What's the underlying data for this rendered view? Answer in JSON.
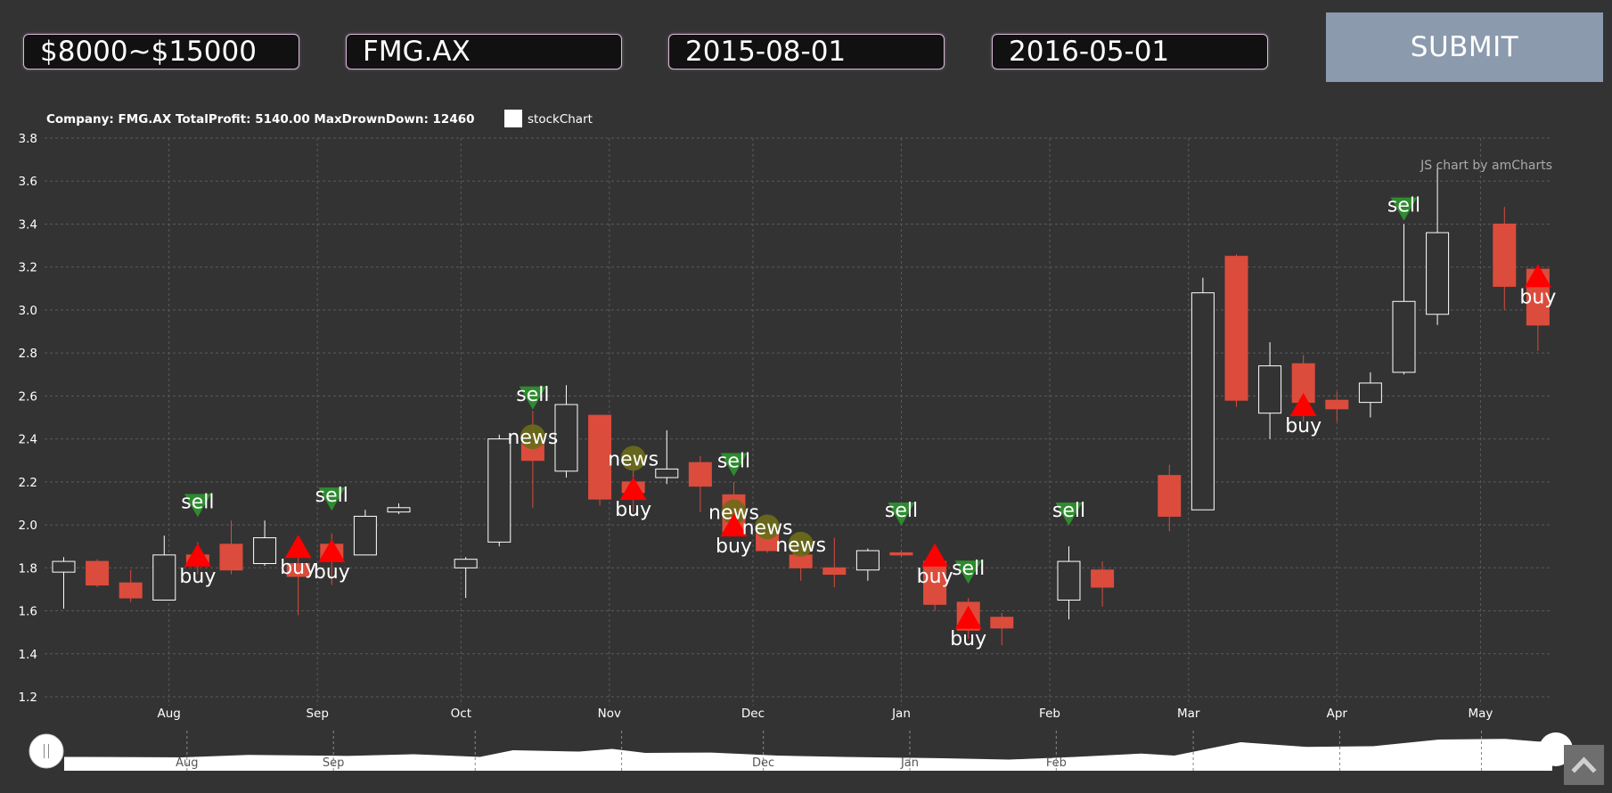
{
  "form": {
    "budget": "$8000~$15000",
    "ticker": "FMG.AX",
    "start_date": "2015-08-01",
    "end_date": "2016-05-01",
    "submit_label": "SUBMIT"
  },
  "chart": {
    "title": "Company: FMG.AX TotalProfit: 5140.00 MaxDrownDown: 12460",
    "legend_label": "stockChart",
    "credit": "JS chart by amCharts"
  },
  "colors": {
    "background": "#333333",
    "up_fill": "#333333",
    "up_stroke": "#ffffff",
    "down_fill": "#db4c3c",
    "buy_marker": "#ff0000",
    "sell_marker": "#2e8b2e",
    "news_marker": "#6b6b1a",
    "grid": "#5a5a5a",
    "scrollbar_fill": "#ffffff"
  },
  "icons": {
    "scroll_top": "chevron-up-icon",
    "scrollbar_handle": "grip-handle-icon"
  },
  "chart_data": {
    "type": "candlestick",
    "ylim": [
      1.2,
      3.8
    ],
    "yticks": [
      1.2,
      1.4,
      1.6,
      1.8,
      2.0,
      2.2,
      2.4,
      2.6,
      2.8,
      3.0,
      3.2,
      3.4,
      3.6,
      3.8
    ],
    "grid": true,
    "xlim": [
      "2015-07-06",
      "2016-05-16"
    ],
    "xticks": [
      {
        "date": "2015-08-01",
        "label": "Aug"
      },
      {
        "date": "2015-09-01",
        "label": "Sep"
      },
      {
        "date": "2015-10-01",
        "label": "Oct"
      },
      {
        "date": "2015-11-01",
        "label": "Nov"
      },
      {
        "date": "2015-12-01",
        "label": "Dec"
      },
      {
        "date": "2016-01-01",
        "label": "Jan"
      },
      {
        "date": "2016-02-01",
        "label": "Feb"
      },
      {
        "date": "2016-03-01",
        "label": "Mar"
      },
      {
        "date": "2016-04-01",
        "label": "Apr"
      },
      {
        "date": "2016-05-01",
        "label": "May"
      }
    ],
    "scrollbar_labels": [
      {
        "date": "2015-08-01",
        "label": "Aug"
      },
      {
        "date": "2015-09-01",
        "label": "Sep"
      },
      {
        "date": "2015-12-01",
        "label": "Dec"
      },
      {
        "date": "2016-01-01",
        "label": "Jan"
      },
      {
        "date": "2016-02-01",
        "label": "Feb"
      }
    ],
    "candles": [
      {
        "date": "2015-07-10",
        "open": 1.78,
        "high": 1.85,
        "low": 1.61,
        "close": 1.83
      },
      {
        "date": "2015-07-17",
        "open": 1.83,
        "high": 1.84,
        "low": 1.71,
        "close": 1.72
      },
      {
        "date": "2015-07-24",
        "open": 1.73,
        "high": 1.79,
        "low": 1.64,
        "close": 1.66
      },
      {
        "date": "2015-07-31",
        "open": 1.65,
        "high": 1.95,
        "low": 1.65,
        "close": 1.86
      },
      {
        "date": "2015-08-07",
        "open": 1.86,
        "high": 1.92,
        "low": 1.77,
        "close": 1.82
      },
      {
        "date": "2015-08-14",
        "open": 1.91,
        "high": 2.02,
        "low": 1.77,
        "close": 1.79
      },
      {
        "date": "2015-08-21",
        "open": 1.82,
        "high": 2.02,
        "low": 1.81,
        "close": 1.94
      },
      {
        "date": "2015-08-28",
        "open": 1.82,
        "high": 1.85,
        "low": 1.58,
        "close": 1.76
      },
      {
        "date": "2015-09-04",
        "open": 1.91,
        "high": 1.96,
        "low": 1.72,
        "close": 1.83
      },
      {
        "date": "2015-09-11",
        "open": 1.86,
        "high": 2.07,
        "low": 1.86,
        "close": 2.04
      },
      {
        "date": "2015-09-18",
        "open": 2.06,
        "high": 2.1,
        "low": 2.05,
        "close": 2.08
      },
      {
        "date": "2015-10-02",
        "open": 1.8,
        "high": 1.85,
        "low": 1.66,
        "close": 1.84
      },
      {
        "date": "2015-10-09",
        "open": 1.92,
        "high": 2.42,
        "low": 1.9,
        "close": 2.4
      },
      {
        "date": "2015-10-16",
        "open": 2.38,
        "high": 2.53,
        "low": 2.08,
        "close": 2.3
      },
      {
        "date": "2015-10-23",
        "open": 2.25,
        "high": 2.65,
        "low": 2.22,
        "close": 2.56
      },
      {
        "date": "2015-10-30",
        "open": 2.51,
        "high": 2.51,
        "low": 2.09,
        "close": 2.12
      },
      {
        "date": "2015-11-06",
        "open": 2.2,
        "high": 2.3,
        "low": 2.06,
        "close": 2.15
      },
      {
        "date": "2015-11-13",
        "open": 2.22,
        "high": 2.44,
        "low": 2.19,
        "close": 2.26
      },
      {
        "date": "2015-11-20",
        "open": 2.29,
        "high": 2.32,
        "low": 2.06,
        "close": 2.18
      },
      {
        "date": "2015-11-27",
        "open": 2.14,
        "high": 2.2,
        "low": 1.95,
        "close": 1.96
      },
      {
        "date": "2015-12-04",
        "open": 1.96,
        "high": 1.99,
        "low": 1.87,
        "close": 1.88
      },
      {
        "date": "2015-12-11",
        "open": 1.86,
        "high": 1.89,
        "low": 1.74,
        "close": 1.8
      },
      {
        "date": "2015-12-18",
        "open": 1.8,
        "high": 1.94,
        "low": 1.71,
        "close": 1.77
      },
      {
        "date": "2015-12-25",
        "open": 1.79,
        "high": 1.89,
        "low": 1.74,
        "close": 1.88
      },
      {
        "date": "2016-01-01",
        "open": 1.87,
        "high": 1.88,
        "low": 1.85,
        "close": 1.86
      },
      {
        "date": "2016-01-08",
        "open": 1.83,
        "high": 1.85,
        "low": 1.6,
        "close": 1.63
      },
      {
        "date": "2016-01-15",
        "open": 1.64,
        "high": 1.66,
        "low": 1.47,
        "close": 1.51
      },
      {
        "date": "2016-01-22",
        "open": 1.57,
        "high": 1.59,
        "low": 1.44,
        "close": 1.52
      },
      {
        "date": "2016-02-05",
        "open": 1.65,
        "high": 1.9,
        "low": 1.56,
        "close": 1.83
      },
      {
        "date": "2016-02-12",
        "open": 1.79,
        "high": 1.83,
        "low": 1.62,
        "close": 1.71
      },
      {
        "date": "2016-02-26",
        "open": 2.23,
        "high": 2.28,
        "low": 1.97,
        "close": 2.04
      },
      {
        "date": "2016-03-04",
        "open": 2.07,
        "high": 3.15,
        "low": 2.07,
        "close": 3.08
      },
      {
        "date": "2016-03-11",
        "open": 3.25,
        "high": 3.26,
        "low": 2.55,
        "close": 2.58
      },
      {
        "date": "2016-03-18",
        "open": 2.52,
        "high": 2.85,
        "low": 2.4,
        "close": 2.74
      },
      {
        "date": "2016-03-25",
        "open": 2.75,
        "high": 2.79,
        "low": 2.48,
        "close": 2.57
      },
      {
        "date": "2016-04-01",
        "open": 2.58,
        "high": 2.62,
        "low": 2.48,
        "close": 2.54
      },
      {
        "date": "2016-04-08",
        "open": 2.57,
        "high": 2.71,
        "low": 2.5,
        "close": 2.66
      },
      {
        "date": "2016-04-15",
        "open": 2.71,
        "high": 3.4,
        "low": 2.7,
        "close": 3.04
      },
      {
        "date": "2016-04-22",
        "open": 2.98,
        "high": 3.66,
        "low": 2.93,
        "close": 3.36
      },
      {
        "date": "2016-05-06",
        "open": 3.4,
        "high": 3.48,
        "low": 3.0,
        "close": 3.11
      },
      {
        "date": "2016-05-13",
        "open": 3.19,
        "high": 3.2,
        "low": 2.81,
        "close": 2.93
      }
    ],
    "events": [
      {
        "type": "sell",
        "label": "sell",
        "date": "2015-08-07",
        "value": 2.09
      },
      {
        "type": "buy",
        "label": "buy",
        "date": "2015-08-07",
        "value": 1.86
      },
      {
        "type": "buy",
        "label": "buy",
        "date": "2015-08-28",
        "value": 1.9
      },
      {
        "type": "sell",
        "label": "sell",
        "date": "2015-09-04",
        "value": 2.12
      },
      {
        "type": "buy",
        "label": "buy",
        "date": "2015-09-04",
        "value": 1.88
      },
      {
        "type": "sell",
        "label": "sell",
        "date": "2015-10-16",
        "value": 2.59
      },
      {
        "type": "news",
        "label": "news",
        "date": "2015-10-16",
        "value": 2.41
      },
      {
        "type": "news",
        "label": "news",
        "date": "2015-11-06",
        "value": 2.31
      },
      {
        "type": "buy",
        "label": "buy",
        "date": "2015-11-06",
        "value": 2.17
      },
      {
        "type": "sell",
        "label": "sell",
        "date": "2015-11-27",
        "value": 2.28
      },
      {
        "type": "news",
        "label": "news",
        "date": "2015-11-27",
        "value": 2.06
      },
      {
        "type": "buy",
        "label": "buy",
        "date": "2015-11-27",
        "value": 2.0
      },
      {
        "type": "news",
        "label": "news",
        "date": "2015-12-04",
        "value": 1.99
      },
      {
        "type": "news",
        "label": "news",
        "date": "2015-12-11",
        "value": 1.91
      },
      {
        "type": "sell",
        "label": "sell",
        "date": "2016-01-01",
        "value": 2.05
      },
      {
        "type": "buy",
        "label": "buy",
        "date": "2016-01-08",
        "value": 1.86
      },
      {
        "type": "sell",
        "label": "sell",
        "date": "2016-01-15",
        "value": 1.78
      },
      {
        "type": "buy",
        "label": "buy",
        "date": "2016-01-15",
        "value": 1.57
      },
      {
        "type": "sell",
        "label": "sell",
        "date": "2016-02-05",
        "value": 2.05
      },
      {
        "type": "buy",
        "label": "buy",
        "date": "2016-03-25",
        "value": 2.56
      },
      {
        "type": "sell",
        "label": "sell",
        "date": "2016-04-15",
        "value": 3.47
      },
      {
        "type": "buy",
        "label": "buy",
        "date": "2016-05-13",
        "value": 3.16
      }
    ],
    "scrollbar_area": [
      {
        "date": "2015-07-10",
        "value": 1.0
      },
      {
        "date": "2015-07-31",
        "value": 0.93
      },
      {
        "date": "2015-08-14",
        "value": 1.3
      },
      {
        "date": "2015-09-04",
        "value": 1.15
      },
      {
        "date": "2015-09-18",
        "value": 1.4
      },
      {
        "date": "2015-10-02",
        "value": 1.0
      },
      {
        "date": "2015-10-09",
        "value": 2.0
      },
      {
        "date": "2015-10-23",
        "value": 1.8
      },
      {
        "date": "2015-10-30",
        "value": 2.2
      },
      {
        "date": "2015-11-06",
        "value": 1.6
      },
      {
        "date": "2015-11-20",
        "value": 1.65
      },
      {
        "date": "2015-12-04",
        "value": 1.2
      },
      {
        "date": "2015-12-18",
        "value": 1.0
      },
      {
        "date": "2016-01-08",
        "value": 0.8
      },
      {
        "date": "2016-01-22",
        "value": 0.6
      },
      {
        "date": "2016-02-05",
        "value": 1.0
      },
      {
        "date": "2016-02-19",
        "value": 1.5
      },
      {
        "date": "2016-02-26",
        "value": 1.2
      },
      {
        "date": "2016-03-11",
        "value": 3.2
      },
      {
        "date": "2016-03-25",
        "value": 2.5
      },
      {
        "date": "2016-04-08",
        "value": 2.6
      },
      {
        "date": "2016-04-22",
        "value": 3.6
      },
      {
        "date": "2016-05-06",
        "value": 3.7
      },
      {
        "date": "2016-05-13",
        "value": 3.3
      }
    ]
  }
}
